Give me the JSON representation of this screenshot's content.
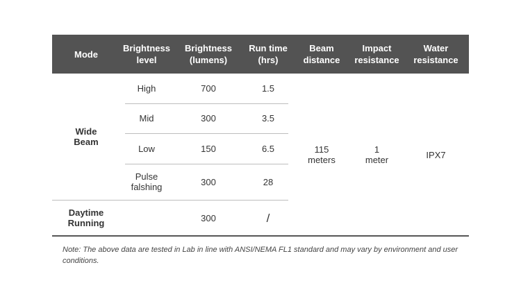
{
  "table": {
    "header": [
      "Mode",
      "Brightness\nlevel",
      "Brightness\n(lumens)",
      "Run time\n(hrs)",
      "Beam\ndistance",
      "Impact\nresistance",
      "Water\nresistance"
    ],
    "wide_beam": {
      "mode": "Wide\nBeam",
      "rows": [
        [
          "High",
          "700",
          "1.5"
        ],
        [
          "Mid",
          "300",
          "3.5"
        ],
        [
          "Low",
          "150",
          "6.5"
        ],
        [
          "Pulse\nfalshing",
          "300",
          "28"
        ]
      ],
      "beam_distance": "115\nmeters",
      "impact_resistance": "1\nmeter",
      "water_resistance": "IPX7"
    },
    "daytime": {
      "mode": "Daytime\nRunning",
      "lumens": "300",
      "run_time": "/"
    }
  },
  "note": "Note: The above data are tested in Lab in line with ANSI/NEMA FL1 standard and may vary by environment and user conditions."
}
